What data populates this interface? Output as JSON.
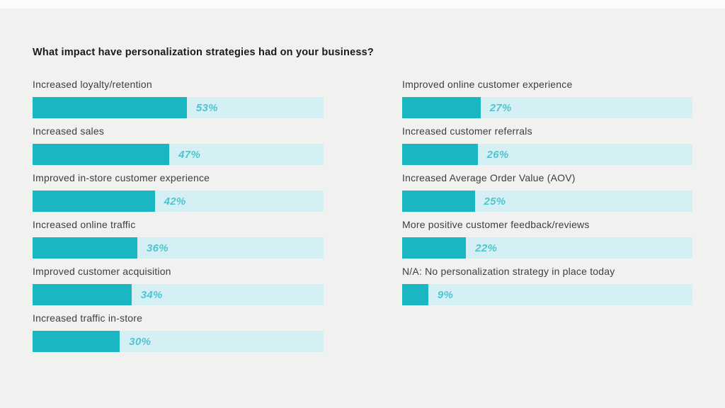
{
  "title": "What impact have personalization strategies had on your business?",
  "colors": {
    "background": "#f1f1f0",
    "bar_fill": "#1ab7c2",
    "bar_track": "#d4f0f4",
    "value_text": "#4fc4ce",
    "label_text": "#3e3e3e"
  },
  "chart_data": {
    "type": "bar",
    "orientation": "horizontal",
    "title": "What impact have personalization strategies had on your business?",
    "unit": "%",
    "xlim": [
      0,
      100
    ],
    "grid": false,
    "legend": false,
    "columns": [
      {
        "name": "left-column",
        "items": [
          {
            "label": "Increased loyalty/retention",
            "value": 53
          },
          {
            "label": "Increased sales",
            "value": 47
          },
          {
            "label": "Improved in-store customer experience",
            "value": 42
          },
          {
            "label": "Increased online traffic",
            "value": 36
          },
          {
            "label": "Improved customer acquisition",
            "value": 34
          },
          {
            "label": "Increased traffic in-store",
            "value": 30
          }
        ]
      },
      {
        "name": "right-column",
        "items": [
          {
            "label": "Improved online customer experience",
            "value": 27
          },
          {
            "label": "Increased customer referrals",
            "value": 26
          },
          {
            "label": "Increased Average Order Value (AOV)",
            "value": 25
          },
          {
            "label": "More positive customer feedback/reviews",
            "value": 22
          },
          {
            "label": "N/A: No personalization strategy in place today",
            "value": 9
          }
        ]
      }
    ]
  }
}
